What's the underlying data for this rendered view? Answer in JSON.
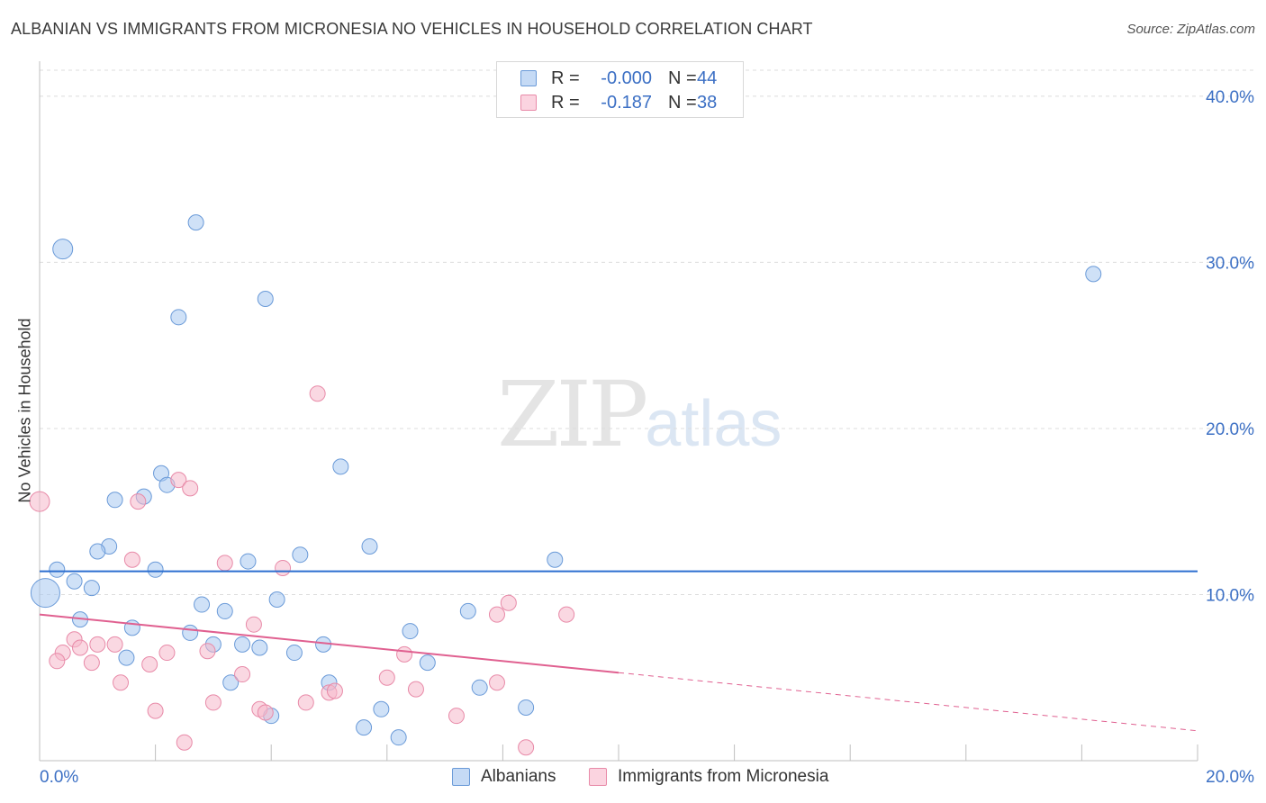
{
  "header": {
    "title": "ALBANIAN VS IMMIGRANTS FROM MICRONESIA NO VEHICLES IN HOUSEHOLD CORRELATION CHART",
    "source": "Source: ZipAtlas.com"
  },
  "watermark": {
    "zip": "ZIP",
    "atlas": "atlas"
  },
  "legend": {
    "rows": [
      {
        "r_label": "R =",
        "r_value": "-0.000",
        "n_label": "N =",
        "n_value": "44",
        "color": "#a8c8f0"
      },
      {
        "r_label": "R =",
        "r_value": "-0.187",
        "n_label": "N =",
        "n_value": "38",
        "color": "#f6b8cb"
      }
    ]
  },
  "chart_data": {
    "type": "scatter",
    "title": "ALBANIAN VS IMMIGRANTS FROM MICRONESIA NO VEHICLES IN HOUSEHOLD CORRELATION CHART",
    "xlabel": "",
    "ylabel": "No Vehicles in Household",
    "xlim": [
      0,
      20
    ],
    "ylim": [
      0,
      42
    ],
    "x_tick_labels": [
      "0.0%",
      "20.0%"
    ],
    "y_tick_labels": [
      "10.0%",
      "20.0%",
      "30.0%",
      "40.0%"
    ],
    "y_ticks": [
      10,
      20,
      30,
      40
    ],
    "grid": true,
    "legend_placement": "bottom",
    "series": [
      {
        "name": "Albanians",
        "color": "#a8c8f0",
        "stroke": "#6a9ad8",
        "trend": {
          "x": [
            0,
            20
          ],
          "y": [
            11.4,
            11.4
          ],
          "dashed_from": null,
          "color": "#2d6fd0"
        },
        "points": [
          {
            "x": 0.4,
            "y": 30.8,
            "big": 1
          },
          {
            "x": 2.7,
            "y": 32.4
          },
          {
            "x": 2.4,
            "y": 26.7
          },
          {
            "x": 3.9,
            "y": 27.8
          },
          {
            "x": 5.2,
            "y": 17.7
          },
          {
            "x": 2.1,
            "y": 17.3
          },
          {
            "x": 2.2,
            "y": 16.6
          },
          {
            "x": 1.8,
            "y": 15.9
          },
          {
            "x": 1.3,
            "y": 15.7
          },
          {
            "x": 1.2,
            "y": 12.9
          },
          {
            "x": 1.0,
            "y": 12.6
          },
          {
            "x": 4.5,
            "y": 12.4
          },
          {
            "x": 5.7,
            "y": 12.9
          },
          {
            "x": 8.9,
            "y": 12.1
          },
          {
            "x": 3.6,
            "y": 12.0
          },
          {
            "x": 0.3,
            "y": 11.5
          },
          {
            "x": 2.0,
            "y": 11.5
          },
          {
            "x": 0.6,
            "y": 10.8
          },
          {
            "x": 0.9,
            "y": 10.4
          },
          {
            "x": 0.1,
            "y": 10.1,
            "big": 2
          },
          {
            "x": 4.1,
            "y": 9.7
          },
          {
            "x": 2.8,
            "y": 9.4
          },
          {
            "x": 3.2,
            "y": 9.0
          },
          {
            "x": 7.4,
            "y": 9.0
          },
          {
            "x": 0.7,
            "y": 8.5
          },
          {
            "x": 1.6,
            "y": 8.0
          },
          {
            "x": 6.4,
            "y": 7.8
          },
          {
            "x": 2.6,
            "y": 7.7
          },
          {
            "x": 3.0,
            "y": 7.0
          },
          {
            "x": 3.5,
            "y": 7.0
          },
          {
            "x": 3.8,
            "y": 6.8
          },
          {
            "x": 4.9,
            "y": 7.0
          },
          {
            "x": 4.4,
            "y": 6.5
          },
          {
            "x": 1.5,
            "y": 6.2
          },
          {
            "x": 6.7,
            "y": 5.9
          },
          {
            "x": 3.3,
            "y": 4.7
          },
          {
            "x": 5.0,
            "y": 4.7
          },
          {
            "x": 7.6,
            "y": 4.4
          },
          {
            "x": 8.4,
            "y": 3.2
          },
          {
            "x": 5.9,
            "y": 3.1
          },
          {
            "x": 4.0,
            "y": 2.7
          },
          {
            "x": 5.6,
            "y": 2.0
          },
          {
            "x": 6.2,
            "y": 1.4
          },
          {
            "x": 18.2,
            "y": 29.3
          }
        ]
      },
      {
        "name": "Immigrants from Micronesia",
        "color": "#f6b8cb",
        "stroke": "#e88aa8",
        "trend": {
          "x": [
            0,
            20
          ],
          "y": [
            8.8,
            1.8
          ],
          "dashed_from": 10,
          "color": "#e06090"
        },
        "points": [
          {
            "x": 4.8,
            "y": 22.1
          },
          {
            "x": 0.0,
            "y": 15.6,
            "big": 1
          },
          {
            "x": 2.4,
            "y": 16.9
          },
          {
            "x": 2.6,
            "y": 16.4
          },
          {
            "x": 1.7,
            "y": 15.6
          },
          {
            "x": 1.6,
            "y": 12.1
          },
          {
            "x": 3.2,
            "y": 11.9
          },
          {
            "x": 4.2,
            "y": 11.6
          },
          {
            "x": 8.1,
            "y": 9.5
          },
          {
            "x": 7.9,
            "y": 8.8
          },
          {
            "x": 9.1,
            "y": 8.8
          },
          {
            "x": 3.7,
            "y": 8.2
          },
          {
            "x": 0.6,
            "y": 7.3
          },
          {
            "x": 1.0,
            "y": 7.0
          },
          {
            "x": 1.3,
            "y": 7.0
          },
          {
            "x": 0.7,
            "y": 6.8
          },
          {
            "x": 0.4,
            "y": 6.5
          },
          {
            "x": 2.9,
            "y": 6.6
          },
          {
            "x": 2.2,
            "y": 6.5
          },
          {
            "x": 6.3,
            "y": 6.4
          },
          {
            "x": 0.3,
            "y": 6.0
          },
          {
            "x": 0.9,
            "y": 5.9
          },
          {
            "x": 1.9,
            "y": 5.8
          },
          {
            "x": 3.5,
            "y": 5.2
          },
          {
            "x": 6.0,
            "y": 5.0
          },
          {
            "x": 1.4,
            "y": 4.7
          },
          {
            "x": 7.9,
            "y": 4.7
          },
          {
            "x": 6.5,
            "y": 4.3
          },
          {
            "x": 5.0,
            "y": 4.1
          },
          {
            "x": 5.1,
            "y": 4.2
          },
          {
            "x": 3.0,
            "y": 3.5
          },
          {
            "x": 4.6,
            "y": 3.5
          },
          {
            "x": 2.0,
            "y": 3.0
          },
          {
            "x": 3.8,
            "y": 3.1
          },
          {
            "x": 3.9,
            "y": 2.9
          },
          {
            "x": 7.2,
            "y": 2.7
          },
          {
            "x": 2.5,
            "y": 1.1
          },
          {
            "x": 8.4,
            "y": 0.8
          }
        ]
      }
    ]
  }
}
